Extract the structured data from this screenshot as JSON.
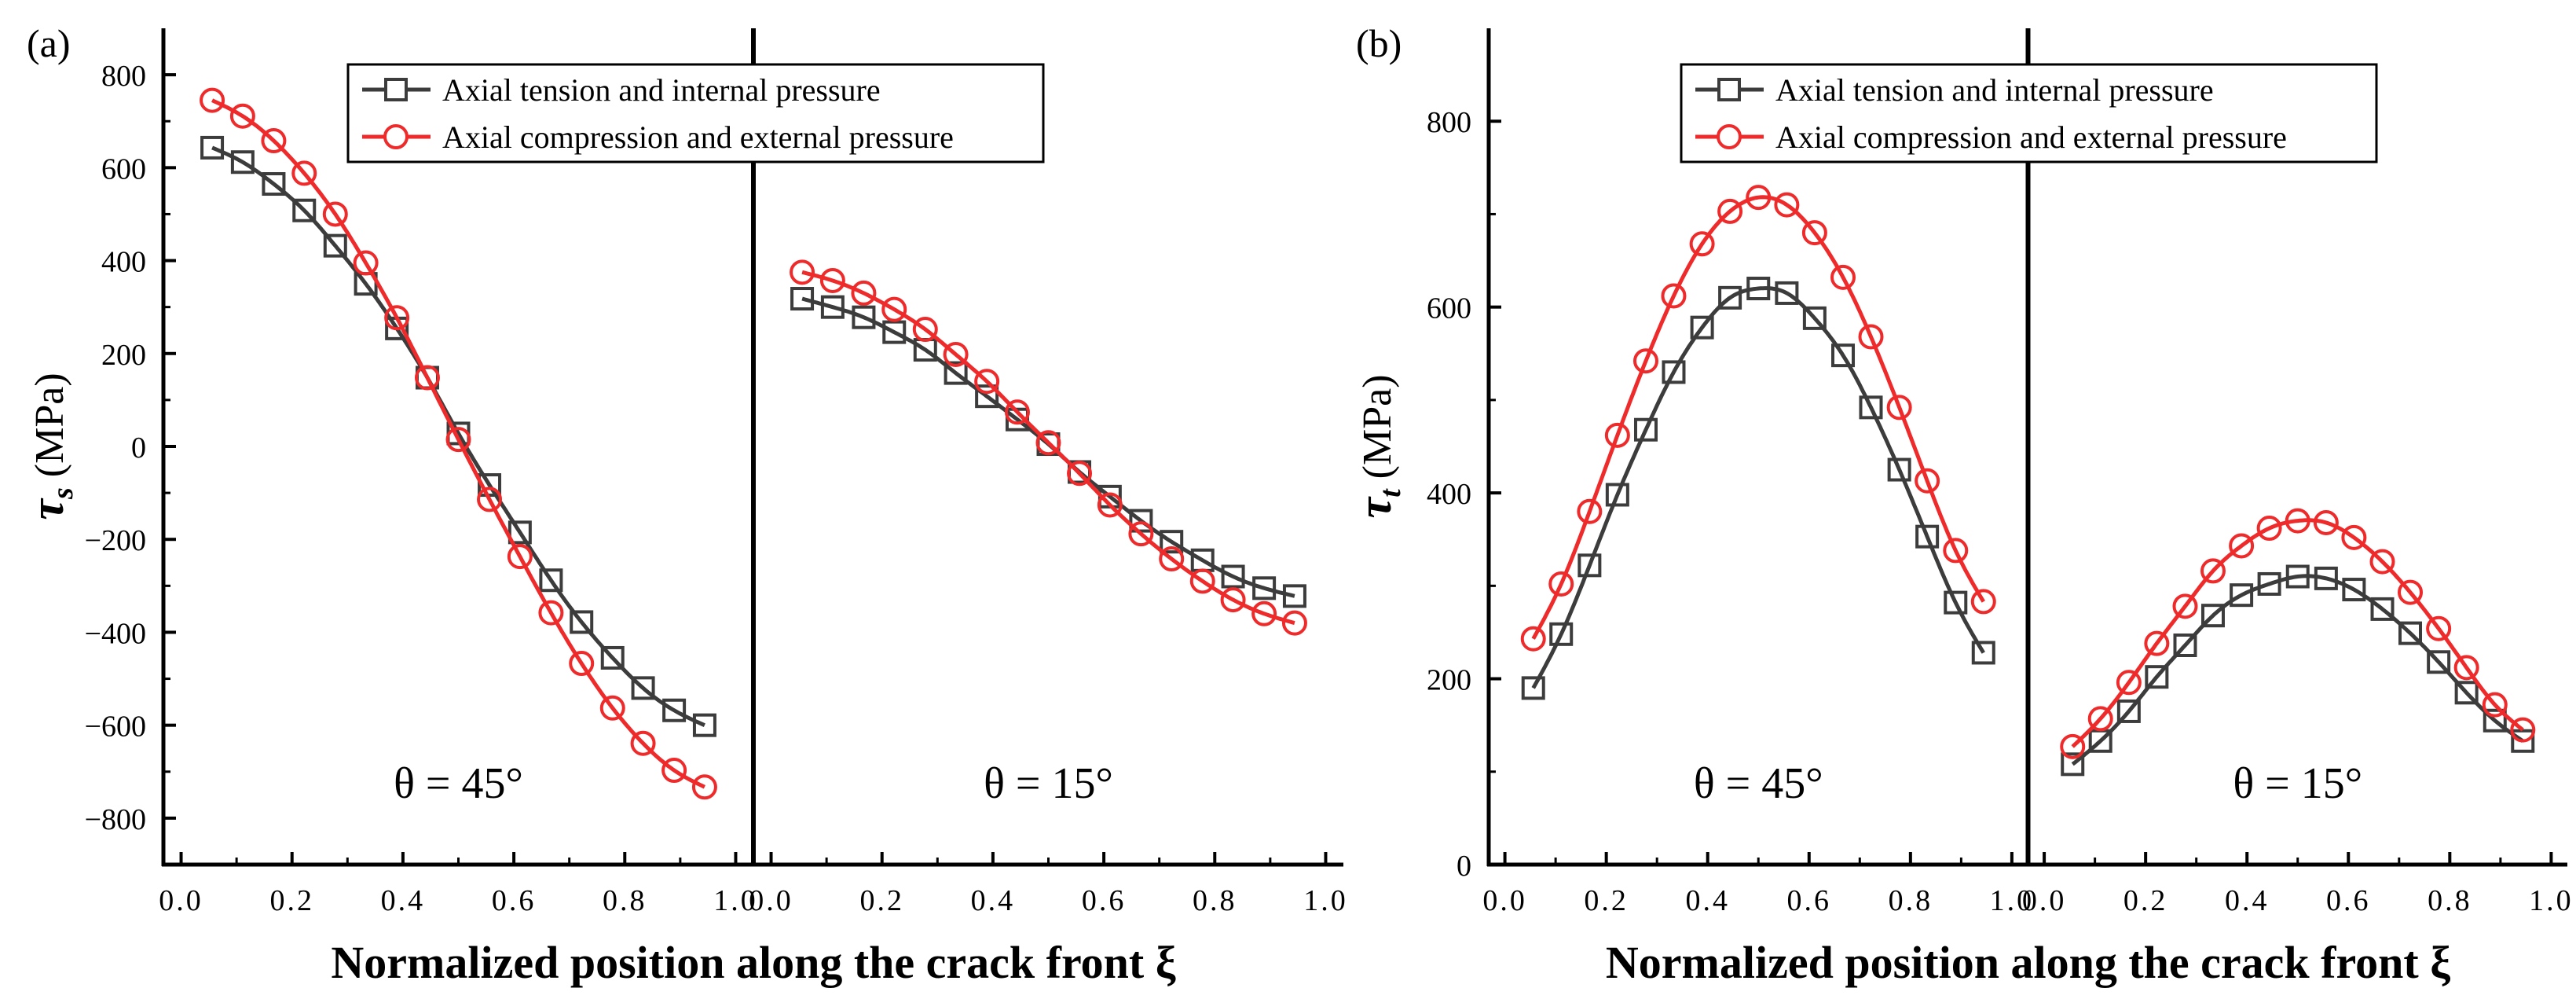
{
  "xlabel": "Normalized position along the crack front ξ",
  "legend": {
    "tension": "Axial tension and internal pressure",
    "compression": "Axial compression and external pressure"
  },
  "colors": {
    "tension": "#3c3c3c",
    "compression": "#ee2a2a"
  },
  "chart_data": [
    {
      "type": "line",
      "panel_label": "(a)",
      "ylabel_symbol": "τ",
      "ylabel_subscript": "s",
      "ylabel_unit": " (MPa)",
      "ylim": [
        -900,
        900
      ],
      "yticks": [
        -800,
        -600,
        -400,
        -200,
        0,
        200,
        400,
        600,
        800
      ],
      "ytick_labels": [
        "−800",
        "−600",
        "−400",
        "−200",
        "0",
        "200",
        "400",
        "600",
        "800"
      ],
      "xlim": [
        0,
        1
      ],
      "xticks": [
        0.0,
        0.2,
        0.4,
        0.6,
        0.8,
        1.0
      ],
      "xtick_labels": [
        "0.0",
        "0.2",
        "0.4",
        "0.6",
        "0.8",
        "1.0"
      ],
      "legend_position": "top-center",
      "subpanels": [
        {
          "annotation": "θ = 45°",
          "x": [
            0.056,
            0.111,
            0.167,
            0.222,
            0.278,
            0.333,
            0.389,
            0.444,
            0.5,
            0.556,
            0.611,
            0.667,
            0.722,
            0.778,
            0.833,
            0.889,
            0.944
          ],
          "series": [
            {
              "name": "Axial tension and internal pressure",
              "key": "tension",
              "values": [
                643,
                612,
                565,
                508,
                432,
                350,
                254,
                148,
                28,
                -83,
                -185,
                -288,
                -378,
                -455,
                -520,
                -568,
                -600
              ]
            },
            {
              "name": "Axial compression and external pressure",
              "key": "compression",
              "values": [
                745,
                711,
                658,
                588,
                500,
                395,
                277,
                148,
                15,
                -114,
                -237,
                -358,
                -467,
                -563,
                -639,
                -697,
                -733
              ]
            }
          ]
        },
        {
          "annotation": "θ = 15°",
          "x": [
            0.056,
            0.111,
            0.167,
            0.222,
            0.278,
            0.333,
            0.389,
            0.444,
            0.5,
            0.556,
            0.611,
            0.667,
            0.722,
            0.778,
            0.833,
            0.889,
            0.944
          ],
          "series": [
            {
              "name": "Axial tension and internal pressure",
              "key": "tension",
              "values": [
                318,
                300,
                278,
                246,
                208,
                158,
                108,
                58,
                5,
                -55,
                -108,
                -160,
                -205,
                -245,
                -280,
                -305,
                -322
              ]
            },
            {
              "name": "Axial compression and external pressure",
              "key": "compression",
              "values": [
                375,
                357,
                330,
                295,
                252,
                198,
                140,
                74,
                8,
                -58,
                -126,
                -188,
                -242,
                -290,
                -330,
                -360,
                -380
              ]
            }
          ]
        }
      ]
    },
    {
      "type": "line",
      "panel_label": "(b)",
      "ylabel_symbol": "τ",
      "ylabel_subscript": "t",
      "ylabel_unit": " (MPa)",
      "ylim": [
        0,
        900
      ],
      "yticks": [
        0,
        200,
        400,
        600,
        800
      ],
      "ytick_labels": [
        "0",
        "200",
        "400",
        "600",
        "800"
      ],
      "xlim": [
        0,
        1
      ],
      "xticks": [
        0.0,
        0.2,
        0.4,
        0.6,
        0.8,
        1.0
      ],
      "xtick_labels": [
        "0.0",
        "0.2",
        "0.4",
        "0.6",
        "0.8",
        "1.0"
      ],
      "legend_position": "top-center",
      "subpanels": [
        {
          "annotation": "θ = 45°",
          "x": [
            0.056,
            0.111,
            0.167,
            0.222,
            0.278,
            0.333,
            0.389,
            0.444,
            0.5,
            0.556,
            0.611,
            0.667,
            0.722,
            0.778,
            0.833,
            0.889,
            0.944
          ],
          "series": [
            {
              "name": "Axial tension and internal pressure",
              "key": "tension",
              "values": [
                190,
                248,
                322,
                398,
                468,
                530,
                578,
                610,
                620,
                615,
                588,
                548,
                492,
                425,
                353,
                282,
                228
              ]
            },
            {
              "name": "Axial compression and external pressure",
              "key": "compression",
              "values": [
                243,
                302,
                380,
                462,
                542,
                612,
                668,
                703,
                718,
                710,
                680,
                632,
                568,
                492,
                413,
                338,
                283
              ]
            }
          ]
        },
        {
          "annotation": "θ = 15°",
          "x": [
            0.056,
            0.111,
            0.167,
            0.222,
            0.278,
            0.333,
            0.389,
            0.444,
            0.5,
            0.556,
            0.611,
            0.667,
            0.722,
            0.778,
            0.833,
            0.889,
            0.944
          ],
          "series": [
            {
              "name": "Axial tension and internal pressure",
              "key": "tension",
              "values": [
                108,
                133,
                165,
                202,
                236,
                268,
                290,
                302,
                310,
                308,
                296,
                275,
                249,
                218,
                185,
                155,
                133
              ]
            },
            {
              "name": "Axial compression and external pressure",
              "key": "compression",
              "values": [
                127,
                157,
                196,
                238,
                278,
                316,
                343,
                362,
                370,
                368,
                352,
                326,
                293,
                254,
                212,
                172,
                145
              ]
            }
          ]
        }
      ]
    }
  ]
}
